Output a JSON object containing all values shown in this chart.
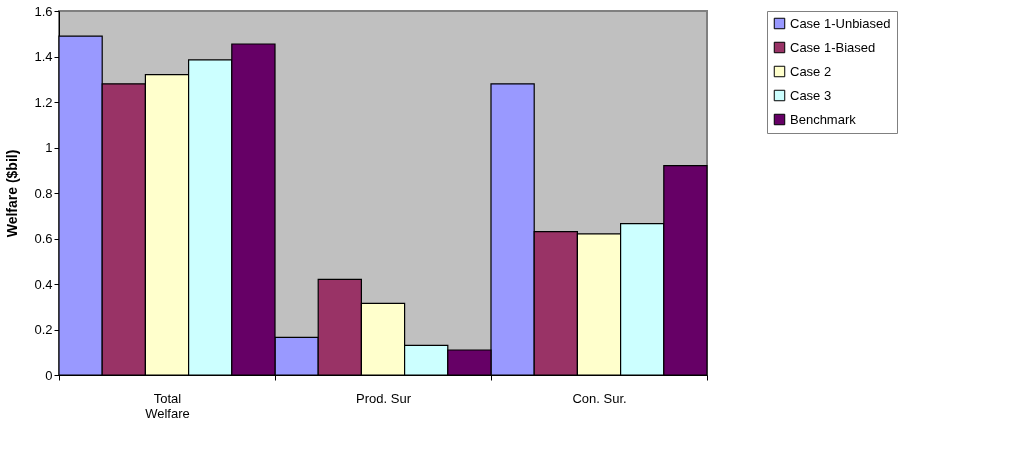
{
  "chart_data": {
    "type": "bar",
    "ylabel": "Welfare ($bil)",
    "categories": [
      "Total\nWelfare",
      "Prod. Sur",
      "Con. Sur."
    ],
    "series": [
      {
        "name": "Case 1-Unbiased",
        "color": "#9999ff",
        "values": [
          1.49,
          0.165,
          1.28
        ]
      },
      {
        "name": "Case 1-Biased",
        "color": "#993366",
        "values": [
          1.28,
          0.42,
          0.63
        ]
      },
      {
        "name": "Case 2",
        "color": "#ffffcc",
        "values": [
          1.32,
          0.315,
          0.62
        ]
      },
      {
        "name": "Case 3",
        "color": "#ccffff",
        "values": [
          1.385,
          0.13,
          0.665
        ]
      },
      {
        "name": "Benchmark",
        "color": "#660066",
        "values": [
          1.455,
          0.11,
          0.92
        ]
      }
    ],
    "ylim": [
      0,
      1.6
    ],
    "yticks": [
      0,
      0.2,
      0.4,
      0.6,
      0.8,
      1,
      1.2,
      1.4,
      1.6
    ],
    "grid": false,
    "legend": "right"
  }
}
